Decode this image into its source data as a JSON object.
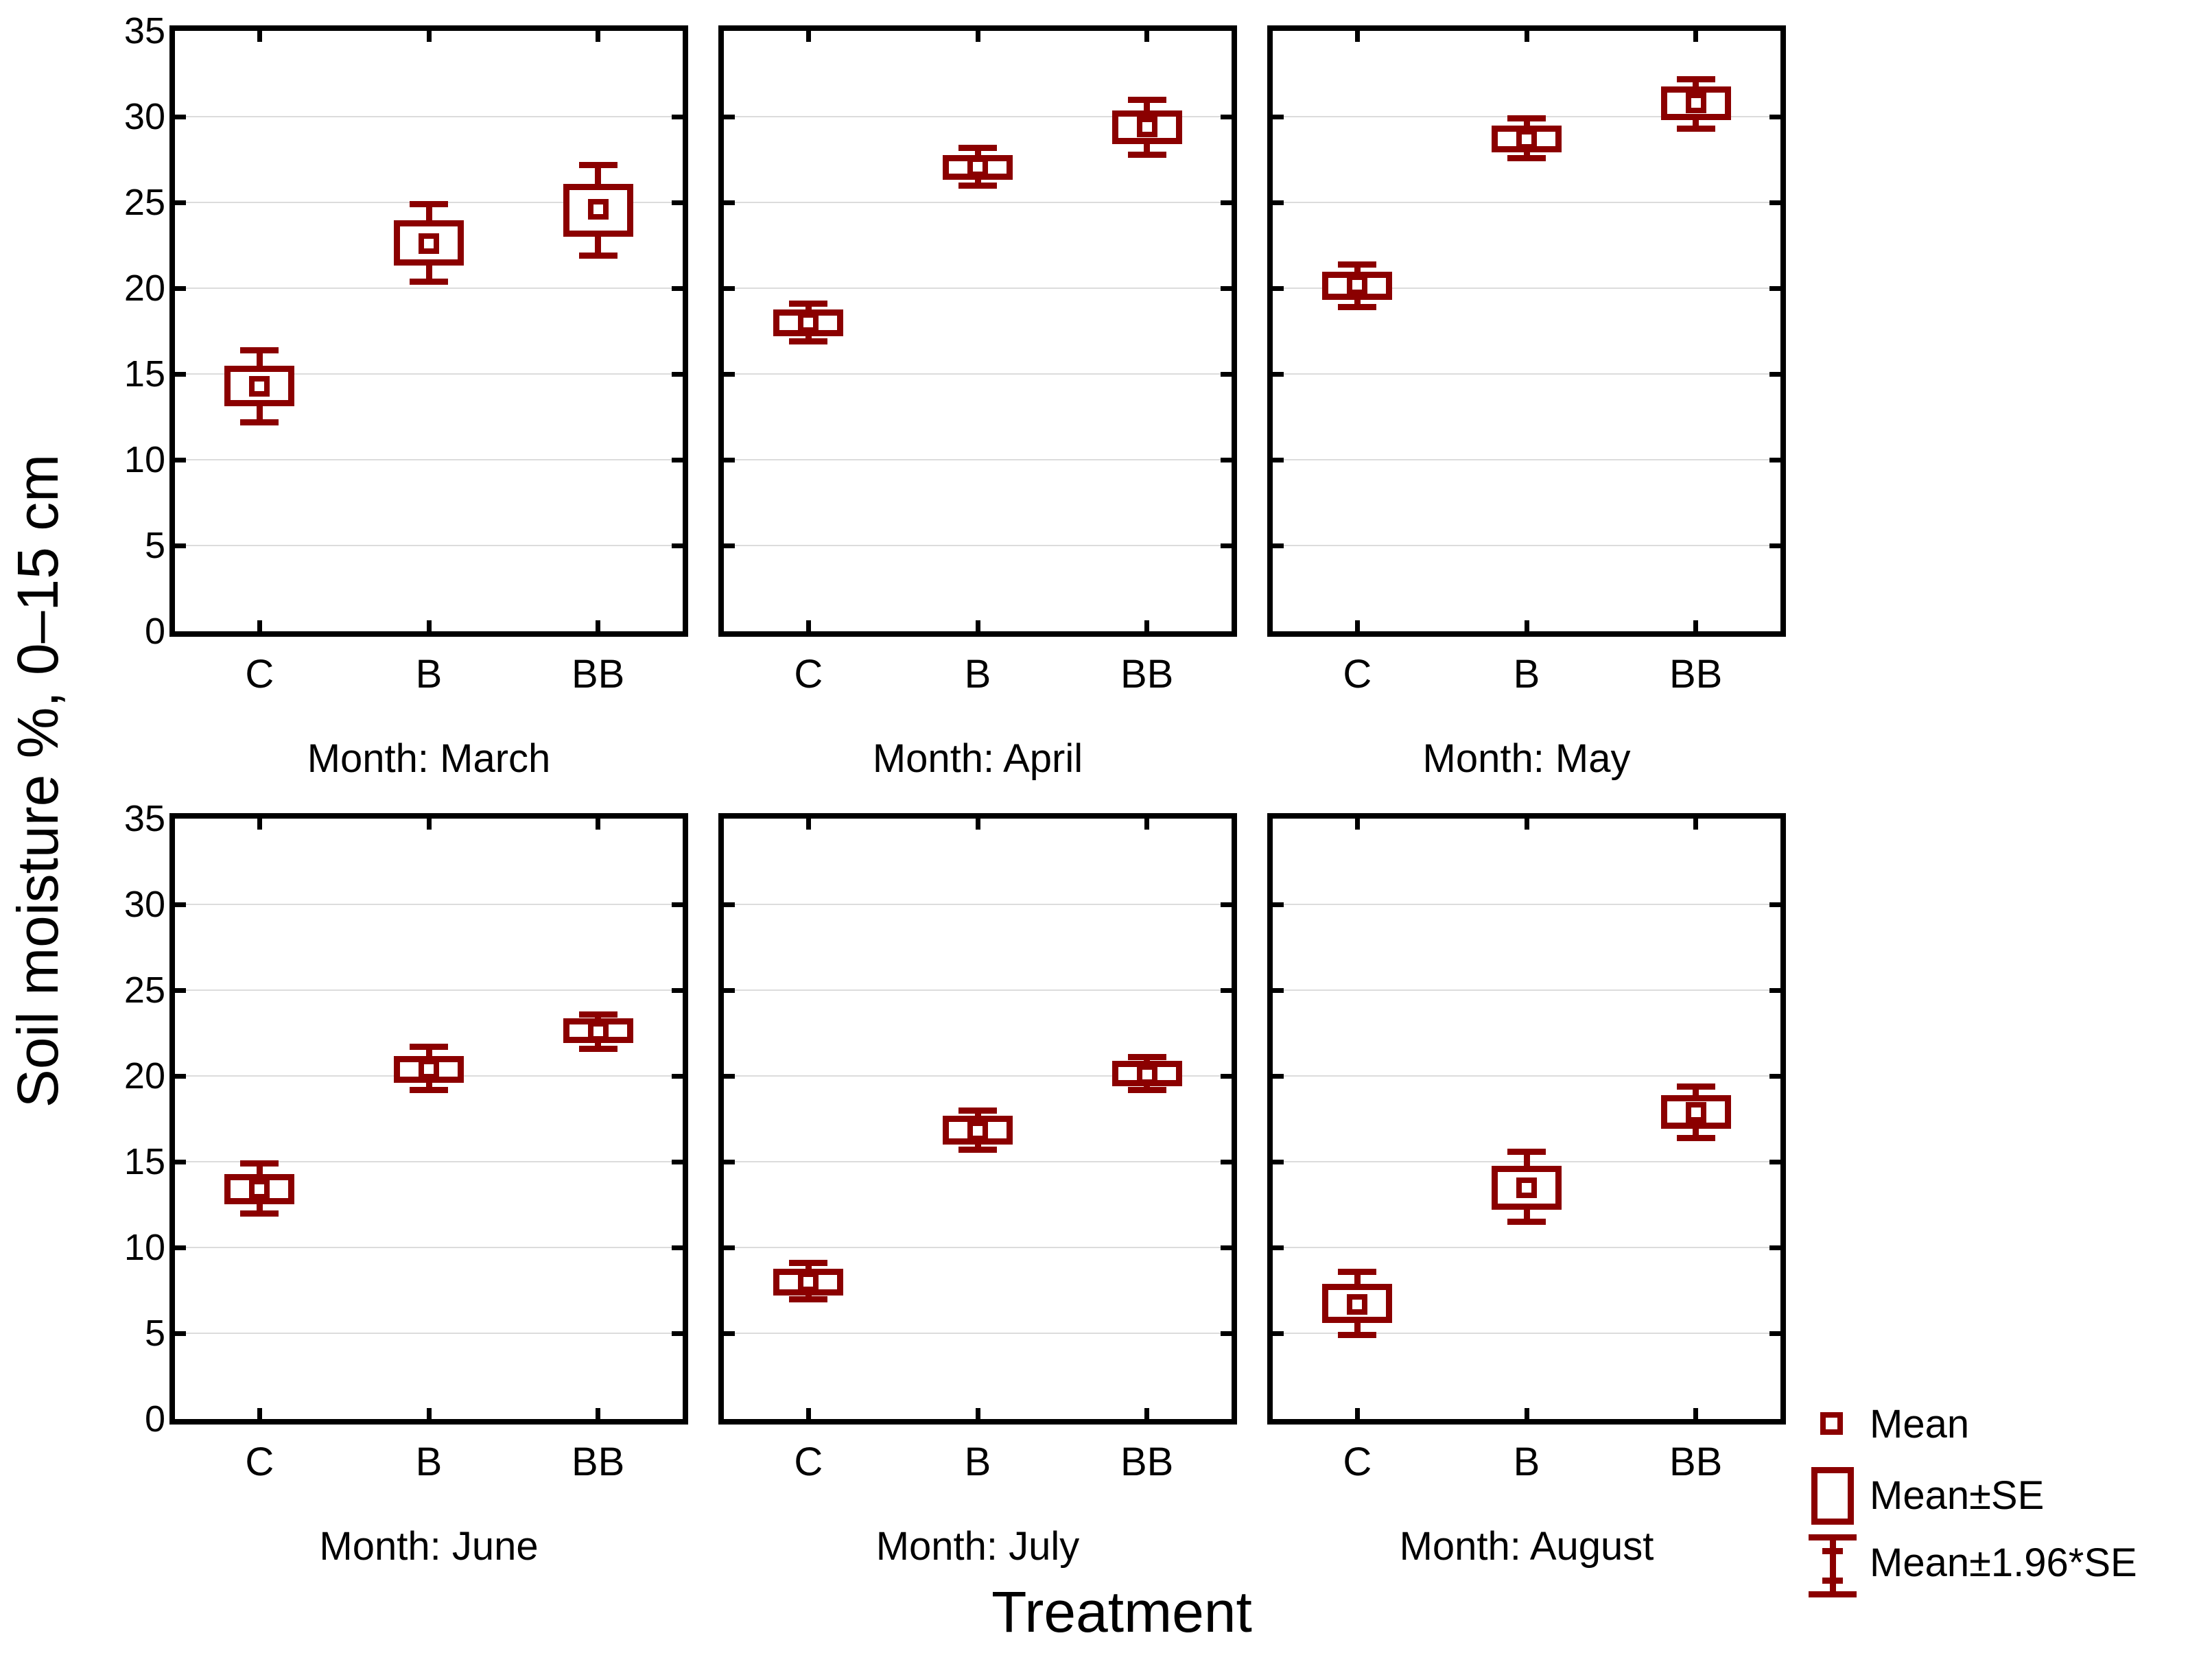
{
  "figure": {
    "y_axis_title": "Soil moisture %, 0–15 cm",
    "x_axis_title": "Treatment"
  },
  "colors": {
    "series": "#8B0000",
    "grid": "#DCDCDC",
    "axis": "#000000",
    "background": "#FFFFFF"
  },
  "legend": {
    "items": [
      {
        "symbol": "mean-square",
        "label": "Mean"
      },
      {
        "symbol": "se-box",
        "label": "Mean±SE"
      },
      {
        "symbol": "ci-whisker",
        "label": "Mean±1.96*SE"
      }
    ]
  },
  "chart_data": {
    "type": "box-whisker-mean",
    "layout": "2 rows x 3 columns of panels",
    "x_categories": [
      "C",
      "B",
      "BB"
    ],
    "ylim": [
      0,
      35
    ],
    "y_ticks": [
      0,
      5,
      10,
      15,
      20,
      25,
      30,
      35
    ],
    "grid_values": [
      5,
      10,
      15,
      20,
      25,
      30
    ],
    "center_stat": "Mean",
    "box_stat": "Mean±SE",
    "whisker_stat": "Mean±1.96*SE",
    "panels": [
      {
        "label": "Month: March",
        "points": [
          {
            "category": "C",
            "mean": 14.3,
            "se_low": 13.3,
            "se_high": 15.3,
            "ci_low": 12.2,
            "ci_high": 16.4
          },
          {
            "category": "B",
            "mean": 22.6,
            "se_low": 21.5,
            "se_high": 23.8,
            "ci_low": 20.4,
            "ci_high": 24.9
          },
          {
            "category": "BB",
            "mean": 24.6,
            "se_low": 23.2,
            "se_high": 25.9,
            "ci_low": 21.9,
            "ci_high": 27.2
          }
        ]
      },
      {
        "label": "Month: April",
        "points": [
          {
            "category": "C",
            "mean": 18.0,
            "se_low": 17.4,
            "se_high": 18.6,
            "ci_low": 16.9,
            "ci_high": 19.1
          },
          {
            "category": "B",
            "mean": 27.1,
            "se_low": 26.5,
            "se_high": 27.6,
            "ci_low": 26.0,
            "ci_high": 28.2
          },
          {
            "category": "BB",
            "mean": 29.4,
            "se_low": 28.6,
            "se_high": 30.2,
            "ci_low": 27.8,
            "ci_high": 31.0
          }
        ]
      },
      {
        "label": "Month: May",
        "points": [
          {
            "category": "C",
            "mean": 20.2,
            "se_low": 19.5,
            "se_high": 20.8,
            "ci_low": 18.9,
            "ci_high": 21.4
          },
          {
            "category": "B",
            "mean": 28.7,
            "se_low": 28.1,
            "se_high": 29.3,
            "ci_low": 27.6,
            "ci_high": 29.9
          },
          {
            "category": "BB",
            "mean": 30.8,
            "se_low": 30.0,
            "se_high": 31.6,
            "ci_low": 29.3,
            "ci_high": 32.2
          }
        ]
      },
      {
        "label": "Month: June",
        "points": [
          {
            "category": "C",
            "mean": 13.4,
            "se_low": 12.7,
            "se_high": 14.1,
            "ci_low": 12.0,
            "ci_high": 14.9
          },
          {
            "category": "B",
            "mean": 20.4,
            "se_low": 19.8,
            "se_high": 21.0,
            "ci_low": 19.2,
            "ci_high": 21.7
          },
          {
            "category": "BB",
            "mean": 22.6,
            "se_low": 22.1,
            "se_high": 23.2,
            "ci_low": 21.6,
            "ci_high": 23.6
          }
        ]
      },
      {
        "label": "Month: July",
        "points": [
          {
            "category": "C",
            "mean": 8.0,
            "se_low": 7.4,
            "se_high": 8.6,
            "ci_low": 7.0,
            "ci_high": 9.1
          },
          {
            "category": "B",
            "mean": 16.8,
            "se_low": 16.2,
            "se_high": 17.5,
            "ci_low": 15.7,
            "ci_high": 18.0
          },
          {
            "category": "BB",
            "mean": 20.1,
            "se_low": 19.6,
            "se_high": 20.7,
            "ci_low": 19.2,
            "ci_high": 21.1
          }
        ]
      },
      {
        "label": "Month: August",
        "points": [
          {
            "category": "C",
            "mean": 6.7,
            "se_low": 5.8,
            "se_high": 7.7,
            "ci_low": 4.9,
            "ci_high": 8.6
          },
          {
            "category": "B",
            "mean": 13.5,
            "se_low": 12.4,
            "se_high": 14.6,
            "ci_low": 11.5,
            "ci_high": 15.6
          },
          {
            "category": "BB",
            "mean": 17.9,
            "se_low": 17.1,
            "se_high": 18.7,
            "ci_low": 16.4,
            "ci_high": 19.4
          }
        ]
      }
    ]
  }
}
